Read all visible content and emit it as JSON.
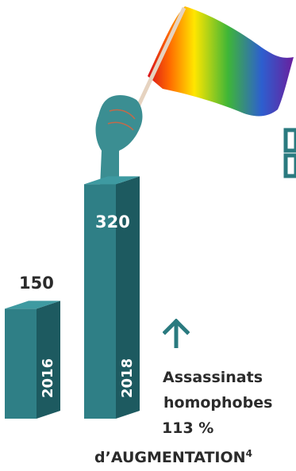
{
  "chart_data": {
    "type": "bar",
    "categories": [
      "2016",
      "2018"
    ],
    "values": [
      150,
      320
    ],
    "value_labels": [
      "150",
      "320"
    ],
    "title": "",
    "xlabel": "",
    "ylabel": "",
    "ylim": [
      0,
      330
    ],
    "grid": false,
    "bar_color": "#2f7f86",
    "bar_side_color": "#1d5a60",
    "bar_top_color": "#3e9aa1",
    "style": "3d-columns"
  },
  "caption": {
    "line1": "Assassinats",
    "line2": "homophobes",
    "line3": "113 %",
    "line4": "d’AUGMENTATION",
    "footnote": "4"
  },
  "colors": {
    "text": "#2b2b2b",
    "accent": "#2a7a7f",
    "hand": "#3b8e92",
    "stick": "#e6d3c0"
  },
  "icons": [
    "up-arrow-icon",
    "rainbow-flag-icon",
    "hand-icon"
  ]
}
